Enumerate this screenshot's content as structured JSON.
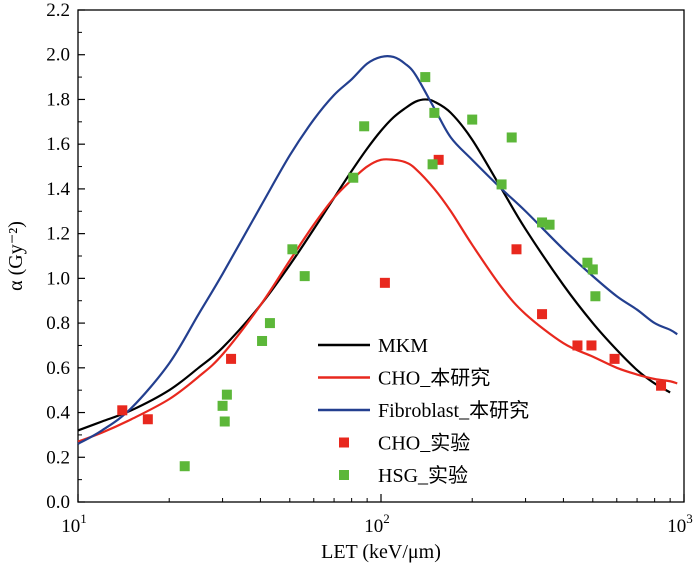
{
  "chart_data": {
    "type": "line",
    "title": "",
    "xlabel": "LET (keV/μm)",
    "ylabel": "α (Gy⁻²)",
    "xscale": "log",
    "xlim": [
      10,
      1000
    ],
    "ylim": [
      0.0,
      2.2
    ],
    "x_ticks": [
      {
        "value": 10,
        "base": "10",
        "exp": "1"
      },
      {
        "value": 100,
        "base": "10",
        "exp": "2"
      },
      {
        "value": 1000,
        "base": "10",
        "exp": "3"
      }
    ],
    "y_ticks": [
      "0.0",
      "0.2",
      "0.4",
      "0.6",
      "0.8",
      "1.0",
      "1.2",
      "1.4",
      "1.6",
      "1.8",
      "2.0",
      "2.2"
    ],
    "grid": false,
    "legend_position": "bottom-center",
    "series": [
      {
        "name": "MKM",
        "kind": "line",
        "color": "#000000",
        "x": [
          10,
          12,
          15,
          20,
          25,
          30,
          40,
          50,
          60,
          70,
          80,
          90,
          100,
          110,
          120,
          130,
          140,
          150,
          170,
          200,
          250,
          300,
          400,
          500,
          600,
          700,
          800,
          900
        ],
        "y": [
          0.32,
          0.36,
          0.41,
          0.5,
          0.6,
          0.69,
          0.88,
          1.06,
          1.22,
          1.36,
          1.48,
          1.58,
          1.66,
          1.72,
          1.76,
          1.79,
          1.8,
          1.79,
          1.74,
          1.62,
          1.4,
          1.22,
          0.97,
          0.8,
          0.68,
          0.59,
          0.53,
          0.49
        ]
      },
      {
        "name": "CHO_本研究",
        "kind": "line",
        "color": "#e8281e",
        "x": [
          10,
          12,
          15,
          20,
          25,
          30,
          40,
          50,
          60,
          70,
          80,
          90,
          100,
          110,
          120,
          130,
          150,
          170,
          200,
          250,
          300,
          400,
          500,
          600,
          700,
          800,
          900,
          950
        ],
        "y": [
          0.27,
          0.31,
          0.37,
          0.46,
          0.56,
          0.66,
          0.88,
          1.08,
          1.24,
          1.36,
          1.44,
          1.5,
          1.53,
          1.53,
          1.52,
          1.49,
          1.4,
          1.3,
          1.15,
          0.96,
          0.84,
          0.71,
          0.65,
          0.6,
          0.57,
          0.55,
          0.54,
          0.53
        ]
      },
      {
        "name": "Fibroblast_本研究",
        "kind": "line",
        "color": "#233f8f",
        "x": [
          10,
          12,
          15,
          20,
          25,
          30,
          40,
          50,
          60,
          70,
          80,
          90,
          100,
          110,
          120,
          130,
          150,
          170,
          200,
          250,
          300,
          400,
          500,
          600,
          700,
          800,
          900,
          950
        ],
        "y": [
          0.26,
          0.32,
          0.42,
          0.62,
          0.84,
          1.02,
          1.32,
          1.55,
          1.71,
          1.82,
          1.89,
          1.96,
          1.99,
          1.99,
          1.96,
          1.91,
          1.76,
          1.63,
          1.53,
          1.4,
          1.3,
          1.13,
          1.01,
          0.92,
          0.86,
          0.8,
          0.77,
          0.75
        ]
      },
      {
        "name": "CHO_实验",
        "kind": "scatter",
        "color": "#e8281e",
        "x": [
          14,
          17,
          32,
          103,
          155,
          280,
          340,
          445,
          495,
          590,
          840
        ],
        "y": [
          0.41,
          0.37,
          0.64,
          0.98,
          1.53,
          1.13,
          0.84,
          0.7,
          0.7,
          0.64,
          0.52
        ]
      },
      {
        "name": "HSG_实验",
        "kind": "scatter",
        "color": "#5cb739",
        "x": [
          22.5,
          30,
          30.5,
          31,
          40.5,
          43,
          51,
          56,
          81,
          88,
          140,
          148,
          150,
          200,
          250,
          270,
          340,
          360,
          480,
          500,
          510
        ],
        "y": [
          0.16,
          0.43,
          0.36,
          0.48,
          0.72,
          0.8,
          1.13,
          1.01,
          1.45,
          1.68,
          1.9,
          1.51,
          1.74,
          1.71,
          1.42,
          1.63,
          1.25,
          1.24,
          1.07,
          1.04,
          0.92
        ]
      }
    ]
  }
}
